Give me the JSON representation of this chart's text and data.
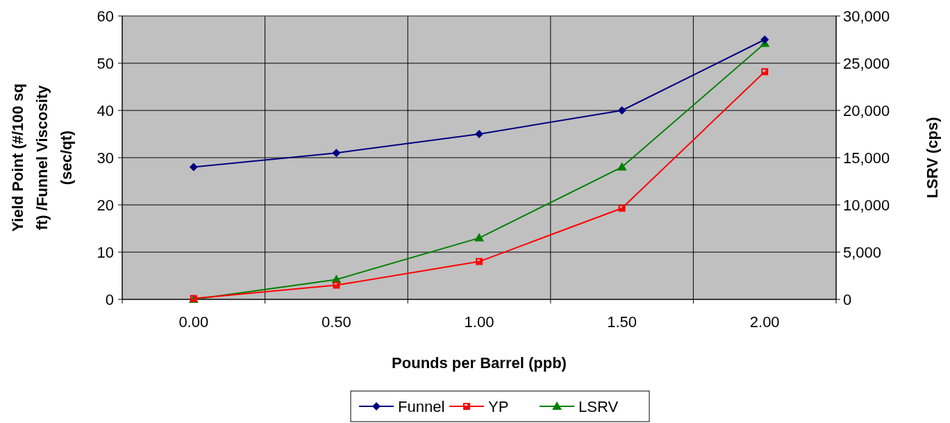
{
  "chart_data": {
    "type": "line",
    "xlabel": "Pounds per Barrel (ppb)",
    "ylabel": "Yield Point (#/100 sq ft) /Funnel Viscosity (sec/qt)",
    "y2label": "LSRV (cps)",
    "categories": [
      "0.00",
      "0.50",
      "1.00",
      "1.50",
      "2.00"
    ],
    "series": [
      {
        "name": "Funnel",
        "color": "#000080",
        "marker": "diamond",
        "values": [
          28,
          31,
          35,
          40,
          55
        ]
      },
      {
        "name": "YP",
        "color": "#ff0000",
        "marker": "square",
        "values": [
          0.2,
          3,
          8,
          19.3,
          48.2
        ]
      },
      {
        "name": "LSRV",
        "color": "#008000",
        "marker": "triangle",
        "axis": "y2",
        "values": [
          0,
          2100,
          6500,
          14000,
          27100
        ]
      }
    ],
    "ylim": [
      0,
      60
    ],
    "yticks": [
      0,
      10,
      20,
      30,
      40,
      50,
      60
    ],
    "y2lim": [
      0,
      30000
    ],
    "y2ticks": [
      {
        "value": 0,
        "label": "0"
      },
      {
        "value": 5000,
        "label": "5,000"
      },
      {
        "value": 10000,
        "label": "10,000"
      },
      {
        "value": 15000,
        "label": "15,000"
      },
      {
        "value": 20000,
        "label": "20,000"
      },
      {
        "value": 25000,
        "label": "25,000"
      },
      {
        "value": 30000,
        "label": "30,000"
      }
    ],
    "grid": true,
    "legend": "bottom"
  }
}
